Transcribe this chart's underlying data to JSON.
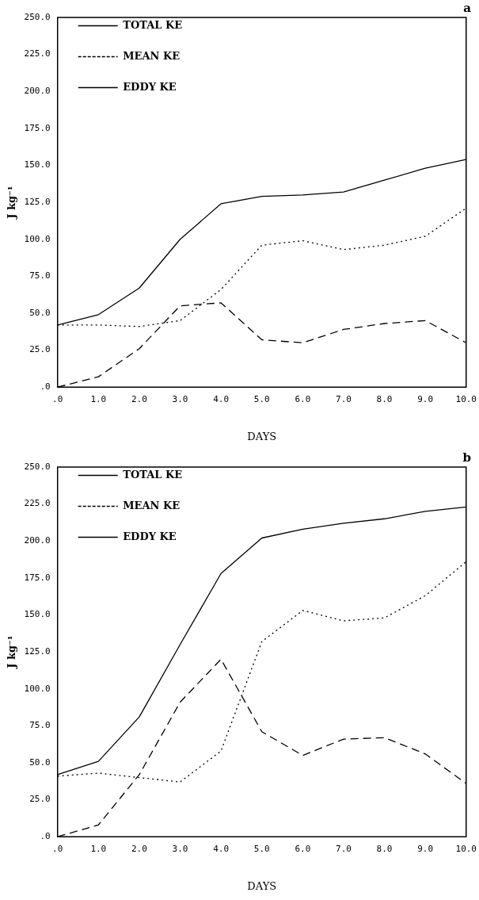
{
  "chart_data": [
    {
      "type": "line",
      "title": "a",
      "xlabel": "DAYS",
      "ylabel": "J kg⁻¹",
      "x": [
        0,
        1,
        2,
        3,
        4,
        5,
        6,
        7,
        8,
        9,
        10
      ],
      "series": [
        {
          "name": "TOTAL KE",
          "color": "#000000",
          "line_style": "solid",
          "values": [
            42,
            49,
            67,
            100,
            124,
            129,
            130,
            132,
            140,
            148,
            154
          ]
        },
        {
          "name": "MEAN KE",
          "color": "#000000",
          "line_style": "dotted",
          "values": [
            42,
            42,
            41,
            45,
            66,
            96,
            99,
            93,
            96,
            102,
            121
          ]
        },
        {
          "name": "EDDY KE",
          "color": "#000000",
          "line_style": "dashed",
          "values": [
            0,
            7,
            26,
            55,
            57,
            32,
            30,
            39,
            43,
            45,
            30
          ]
        }
      ],
      "xlim": [
        0,
        10
      ],
      "xticks": [
        {
          "value": 0,
          "label": ".0"
        },
        {
          "value": 1,
          "label": "1.0"
        },
        {
          "value": 2,
          "label": "2.0"
        },
        {
          "value": 3,
          "label": "3.0"
        },
        {
          "value": 4,
          "label": "4.0"
        },
        {
          "value": 5,
          "label": "5.0"
        },
        {
          "value": 6,
          "label": "6.0"
        },
        {
          "value": 7,
          "label": "7.0"
        },
        {
          "value": 8,
          "label": "8.0"
        },
        {
          "value": 9,
          "label": "9.0"
        },
        {
          "value": 10,
          "label": "10.0"
        }
      ],
      "ylim": [
        0,
        250
      ],
      "yticks": [
        {
          "value": 0,
          "label": ".0"
        },
        {
          "value": 25,
          "label": "25.0"
        },
        {
          "value": 50,
          "label": "50.0"
        },
        {
          "value": 75,
          "label": "75.0"
        },
        {
          "value": 100,
          "label": "100.0"
        },
        {
          "value": 125,
          "label": "125.0"
        },
        {
          "value": 150,
          "label": "150.0"
        },
        {
          "value": 175,
          "label": "175.0"
        },
        {
          "value": 200,
          "label": "200.0"
        },
        {
          "value": 225,
          "label": "225.0"
        },
        {
          "value": 250,
          "label": "250.0"
        }
      ],
      "grid": false,
      "legend": "top left",
      "marker": "none"
    },
    {
      "type": "line",
      "title": "b",
      "xlabel": "DAYS",
      "ylabel": "J kg⁻¹",
      "x": [
        0,
        1,
        2,
        3,
        4,
        5,
        6,
        7,
        8,
        9,
        10
      ],
      "series": [
        {
          "name": "TOTAL KE",
          "color": "#000000",
          "line_style": "solid",
          "values": [
            42,
            51,
            81,
            130,
            178,
            202,
            208,
            212,
            215,
            220,
            223
          ]
        },
        {
          "name": "MEAN KE",
          "color": "#000000",
          "line_style": "dotted",
          "values": [
            41,
            43,
            40,
            37,
            58,
            132,
            153,
            146,
            148,
            163,
            186
          ]
        },
        {
          "name": "EDDY KE",
          "color": "#000000",
          "line_style": "dashed",
          "values": [
            0,
            8,
            42,
            91,
            120,
            71,
            55,
            66,
            67,
            56,
            36
          ]
        }
      ],
      "xlim": [
        0,
        10
      ],
      "xticks": [
        {
          "value": 0,
          "label": ".0"
        },
        {
          "value": 1,
          "label": "1.0"
        },
        {
          "value": 2,
          "label": "2.0"
        },
        {
          "value": 3,
          "label": "3.0"
        },
        {
          "value": 4,
          "label": "4.0"
        },
        {
          "value": 5,
          "label": "5.0"
        },
        {
          "value": 6,
          "label": "6.0"
        },
        {
          "value": 7,
          "label": "7.0"
        },
        {
          "value": 8,
          "label": "8.0"
        },
        {
          "value": 9,
          "label": "9.0"
        },
        {
          "value": 10,
          "label": "10.0"
        }
      ],
      "ylim": [
        0,
        250
      ],
      "yticks": [
        {
          "value": 0,
          "label": ".0"
        },
        {
          "value": 25,
          "label": "25.0"
        },
        {
          "value": 50,
          "label": "50.0"
        },
        {
          "value": 75,
          "label": "75.0"
        },
        {
          "value": 100,
          "label": "100.0"
        },
        {
          "value": 125,
          "label": "125.0"
        },
        {
          "value": 150,
          "label": "150.0"
        },
        {
          "value": 175,
          "label": "175.0"
        },
        {
          "value": 200,
          "label": "200.0"
        },
        {
          "value": 225,
          "label": "225.0"
        },
        {
          "value": 250,
          "label": "250.0"
        }
      ],
      "grid": false,
      "legend": "top left",
      "marker": "none"
    }
  ]
}
